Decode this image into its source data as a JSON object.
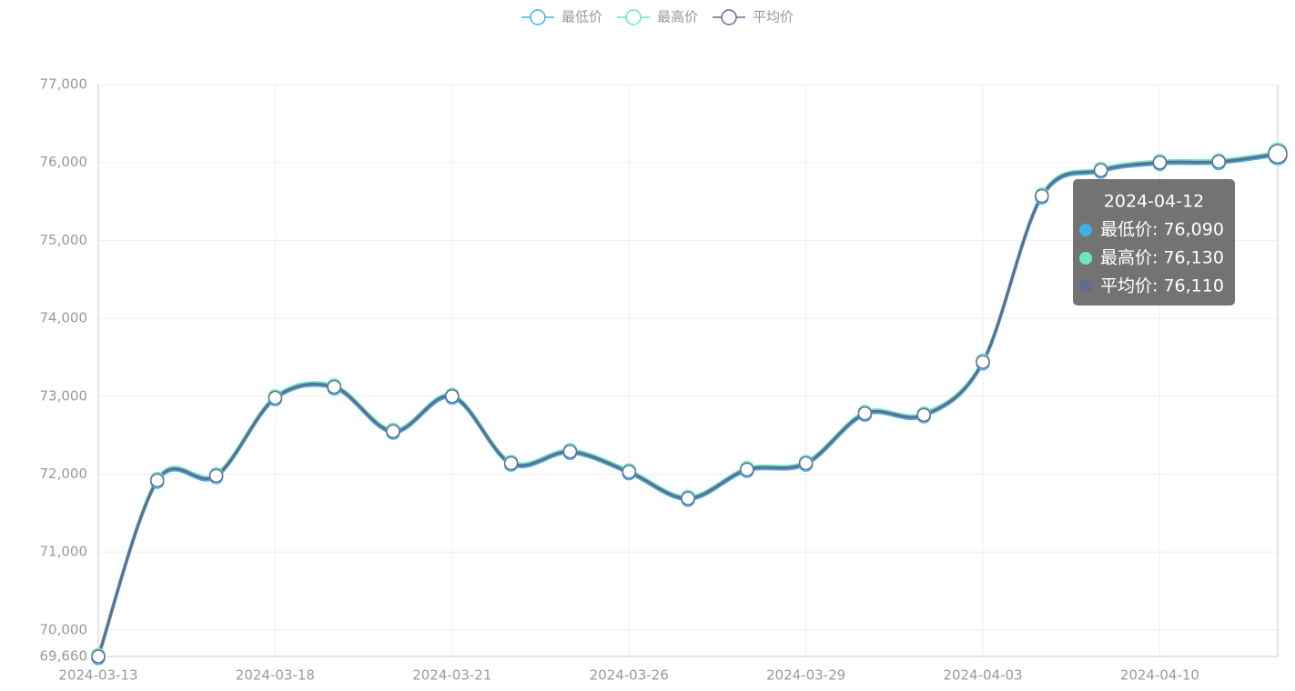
{
  "chart_data": {
    "type": "line",
    "categories": [
      "2024-03-13",
      null,
      null,
      "2024-03-18",
      null,
      null,
      "2024-03-21",
      null,
      null,
      "2024-03-26",
      null,
      null,
      "2024-03-29",
      null,
      null,
      "2024-04-03",
      null,
      null,
      "2024-04-10",
      null,
      "2024-04-12"
    ],
    "series": [
      {
        "name": "最低价",
        "color": "#3fb1e3",
        "values": [
          69640,
          71900,
          71960,
          72960,
          73100,
          72530,
          72980,
          72120,
          72270,
          72010,
          71670,
          72040,
          72120,
          72760,
          72740,
          73420,
          75550,
          75880,
          75980,
          75990,
          76090
        ]
      },
      {
        "name": "最高价",
        "color": "#6be6c1",
        "values": [
          69680,
          71940,
          72000,
          73000,
          73140,
          72570,
          73020,
          72160,
          72310,
          72050,
          71710,
          72080,
          72160,
          72800,
          72780,
          73460,
          75590,
          75920,
          76020,
          76030,
          76130
        ]
      },
      {
        "name": "平均价",
        "color": "#626c91",
        "values": [
          69660,
          71920,
          71980,
          72980,
          73120,
          72550,
          73000,
          72140,
          72290,
          72030,
          71690,
          72060,
          72140,
          72780,
          72760,
          73440,
          75570,
          75900,
          76000,
          76010,
          76110
        ]
      }
    ],
    "ylim": [
      69660,
      77000
    ],
    "yticks": [
      {
        "value": 69660,
        "label": "69,660"
      },
      {
        "value": 70000,
        "label": "70,000"
      },
      {
        "value": 71000,
        "label": "71,000"
      },
      {
        "value": 72000,
        "label": "72,000"
      },
      {
        "value": 73000,
        "label": "73,000"
      },
      {
        "value": 74000,
        "label": "74,000"
      },
      {
        "value": 75000,
        "label": "75,000"
      },
      {
        "value": 76000,
        "label": "76,000"
      },
      {
        "value": 77000,
        "label": "77,000"
      }
    ],
    "grid": true,
    "smooth": true,
    "tooltip": {
      "rows": [
        "最低价: 76,090",
        "最高价: 76,130",
        "平均价: 76,110"
      ]
    }
  }
}
